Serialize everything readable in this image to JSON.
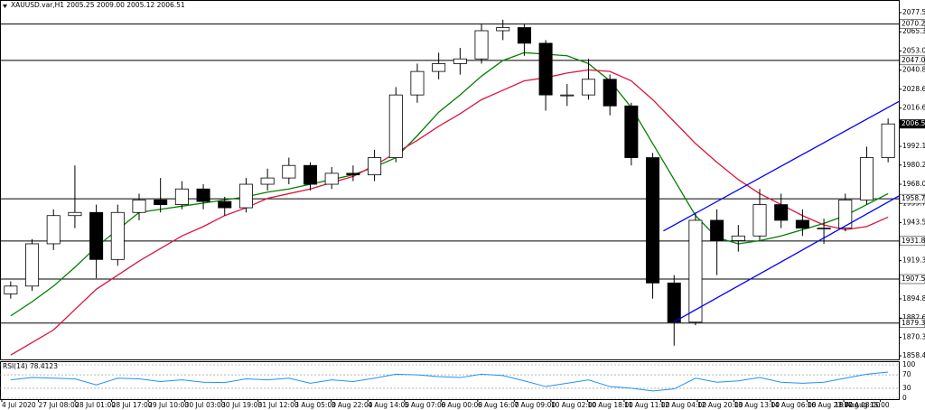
{
  "chart_data": {
    "type": "candlestick",
    "title": "XAUUSD.var,H1  2005.25 2009.00 2005.12 2006.51",
    "ylim": [
      1856.2,
      2085.6
    ],
    "xlim": [
      -0.5,
      41.5
    ],
    "yticks": [
      2077.55,
      {
        "value": 2065.3,
        "label": "2065.30"
      },
      2053.05,
      {
        "value": 2040.8,
        "label": "2040.80"
      },
      2028.65,
      2016.65,
      1992.15,
      1980.25,
      {
        "value": 1968,
        "label": "1968.00"
      },
      1955.75,
      {
        "value": 1943.5,
        "label": "1943.50"
      },
      1919.35,
      1894.85,
      {
        "value": 1882.6,
        "label": "1882.60"
      },
      1870.35,
      1858.45
    ],
    "levels": [
      2070.24,
      2047.08,
      1958.71,
      1931.81,
      {
        "value": 1907.5,
        "label": "1907.50"
      },
      1879.39
    ],
    "current_price": 2006.51,
    "x_labels": [
      "4 Jul 2020",
      "27 Jul 08:00",
      "28 Jul 01:00",
      "28 Jul 17:00",
      "29 Jul 10:00",
      "30 Jul 03:00",
      "30 Jul 19:00",
      "31 Jul 12:00",
      "3 Aug 05:00",
      "3 Aug 22:00",
      "4 Aug 14:00",
      "5 Aug 07:00",
      "6 Aug 00:00",
      "6 Aug 16:00",
      "7 Aug 09:00",
      "10 Aug 02:00",
      "10 Aug 18:00",
      "11 Aug 11:00",
      "12 Aug 04:00",
      "12 Aug 20:00",
      "13 Aug 13:00",
      "14 Aug 06:00",
      "16 Aug 23:00",
      "17 Aug 15:00",
      "18 Aug 08:00"
    ],
    "candles": {
      "open": [
        1898,
        1903,
        1930,
        1948,
        1950,
        1920,
        1950,
        1958,
        1955,
        1965,
        1957,
        1953,
        1968,
        1972,
        1980,
        1968,
        1975,
        1974,
        1985,
        2025,
        2040,
        2045,
        2048,
        2066,
        2068,
        2058,
        2025,
        2025,
        2035,
        2018,
        1985,
        1905,
        1880,
        1945,
        1932,
        1935,
        1955,
        1945,
        1940,
        1940,
        1958,
        1985
      ],
      "high": [
        1906,
        1933,
        1952,
        1980,
        1955,
        1955,
        1962,
        1972,
        1970,
        1968,
        1960,
        1972,
        1978,
        1985,
        1982,
        1979,
        1980,
        1990,
        2030,
        2045,
        2052,
        2055,
        2070,
        2073,
        2070,
        2060,
        2032,
        2048,
        2038,
        2020,
        1988,
        1910,
        1950,
        1952,
        1942,
        1965,
        1962,
        1952,
        1946,
        1962,
        1992,
        2010
      ],
      "low": [
        1895,
        1900,
        1926,
        1940,
        1908,
        1916,
        1945,
        1950,
        1952,
        1952,
        1948,
        1950,
        1964,
        1968,
        1964,
        1965,
        1970,
        1970,
        1982,
        2020,
        2035,
        2038,
        2045,
        2060,
        2050,
        2015,
        2018,
        2022,
        2012,
        1980,
        1895,
        1865,
        1878,
        1910,
        1925,
        1932,
        1940,
        1935,
        1930,
        1938,
        1955,
        1982
      ],
      "close": [
        1903,
        1930,
        1948,
        1950,
        1920,
        1950,
        1958,
        1955,
        1965,
        1957,
        1953,
        1968,
        1972,
        1980,
        1968,
        1975,
        1974,
        1985,
        2025,
        2040,
        2045,
        2048,
        2066,
        2068,
        2058,
        2025,
        2025,
        2035,
        2018,
        1985,
        1905,
        1880,
        1945,
        1932,
        1935,
        1955,
        1945,
        1940,
        1940,
        1958,
        1985,
        2006.51
      ],
      "color": "#000000"
    },
    "ma_lines": [
      {
        "color": "#008000",
        "values": [
          1884,
          1893,
          1903,
          1915,
          1928,
          1939,
          1950,
          1952,
          1954,
          1956,
          1958,
          1960,
          1963,
          1965,
          1968,
          1971,
          1974,
          1979,
          1985,
          1999,
          2014,
          2025,
          2037,
          2047,
          2052,
          2051,
          2050,
          2045,
          2034,
          2017,
          1994,
          1971,
          1948,
          1934,
          1930,
          1932,
          1935,
          1939,
          1943,
          1948,
          1955,
          1962
        ]
      },
      {
        "color": "#dc143c",
        "values": [
          1859,
          1867,
          1875,
          1888,
          1901,
          1910,
          1919,
          1927,
          1935,
          1941,
          1948,
          1953,
          1959,
          1962,
          1965,
          1969,
          1973,
          1980,
          1988,
          1996,
          2005,
          2013,
          2022,
          2028,
          2034,
          2036,
          2039,
          2041,
          2040,
          2034,
          2022,
          2008,
          1994,
          1982,
          1971,
          1962,
          1955,
          1948,
          1942,
          1939,
          1941,
          1947
        ]
      }
    ],
    "trendlines": [
      {
        "color": "#0000ff",
        "x": [
          30.5,
          41.5
        ],
        "y": [
          1938.2,
          2020.8
        ]
      },
      {
        "color": "#0000ff",
        "x": [
          31,
          41.5
        ],
        "y": [
          1880.2,
          1960.5
        ]
      }
    ],
    "rsi": {
      "label": "RSI(14) 78.4123",
      "color": "#1e90ff",
      "ylim": [
        0,
        100
      ],
      "yticks": [
        100,
        70,
        30,
        0
      ],
      "values": [
        55,
        62,
        60,
        58,
        40,
        60,
        58,
        50,
        55,
        48,
        47,
        58,
        55,
        60,
        45,
        55,
        50,
        60,
        72,
        70,
        65,
        62,
        72,
        68,
        52,
        35,
        45,
        55,
        35,
        30,
        22,
        28,
        60,
        48,
        52,
        62,
        48,
        45,
        48,
        60,
        72,
        78.41
      ]
    }
  }
}
